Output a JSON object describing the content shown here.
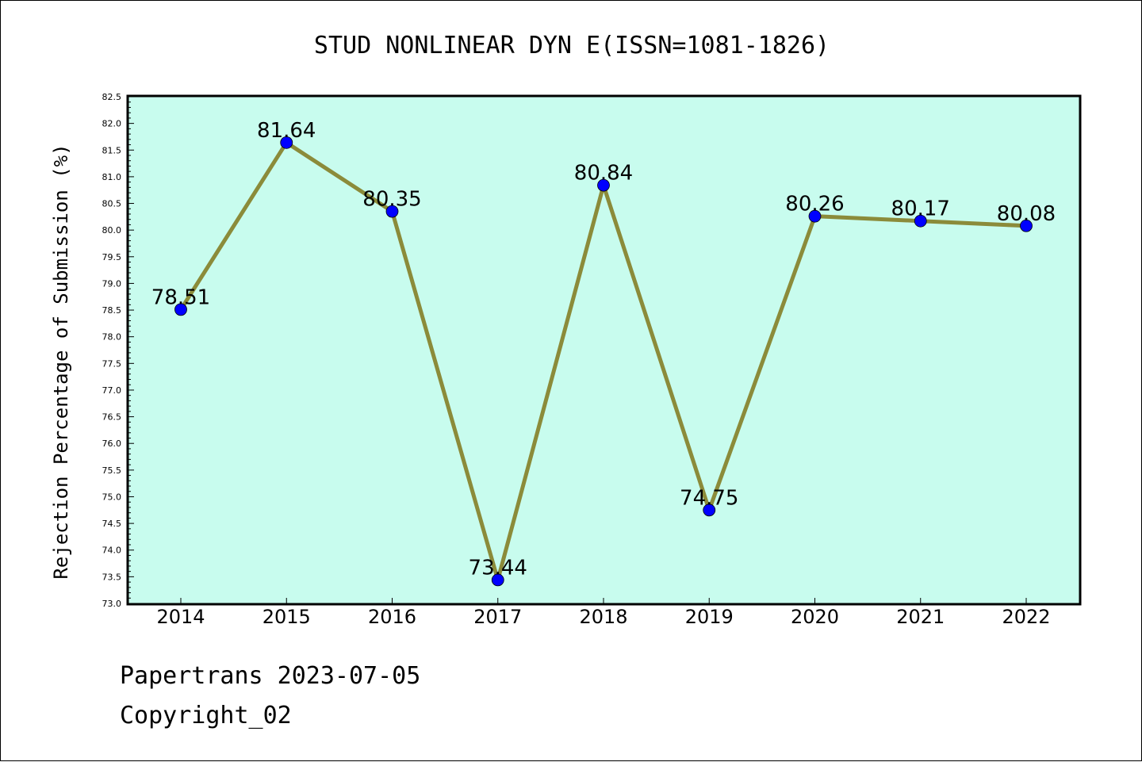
{
  "chart_data": {
    "type": "line",
    "title": "STUD NONLINEAR DYN E(ISSN=1081-1826)",
    "xlabel": "",
    "ylabel": "Rejection Percentage of Submission (%)",
    "categories": [
      "2014",
      "2015",
      "2016",
      "2017",
      "2018",
      "2019",
      "2020",
      "2021",
      "2022"
    ],
    "series": [
      {
        "values": [
          78.51,
          81.64,
          80.35,
          73.44,
          80.84,
          74.75,
          80.26,
          80.17,
          80.08
        ],
        "labels": [
          "78.51",
          "81.64",
          "80.35",
          "73.44",
          "80.84",
          "74.75",
          "80.26",
          "80.17",
          "80.08"
        ],
        "line_color": "#8b8b3a",
        "marker_color": "#0000ff"
      }
    ],
    "ylim": [
      73.0,
      82.5
    ],
    "yticks": [
      "73.0",
      "73.5",
      "74.0",
      "74.5",
      "75.0",
      "75.5",
      "76.0",
      "76.5",
      "77.0",
      "77.5",
      "78.0",
      "78.5",
      "79.0",
      "79.5",
      "80.0",
      "80.5",
      "81.0",
      "81.5",
      "82.0",
      "82.5"
    ],
    "grid": false,
    "plot_background": "#c8fcee"
  },
  "footer": {
    "source": "Papertrans 2023-07-05",
    "copyright": "Copyright_02"
  }
}
